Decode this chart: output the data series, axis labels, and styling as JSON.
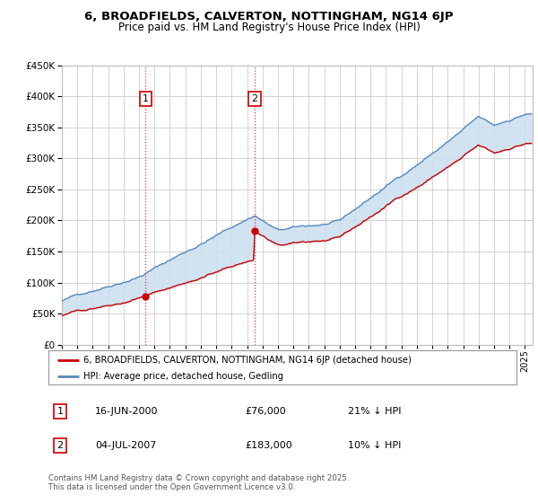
{
  "title": "6, BROADFIELDS, CALVERTON, NOTTINGHAM, NG14 6JP",
  "subtitle": "Price paid vs. HM Land Registry's House Price Index (HPI)",
  "legend_property": "6, BROADFIELDS, CALVERTON, NOTTINGHAM, NG14 6JP (detached house)",
  "legend_hpi": "HPI: Average price, detached house, Gedling",
  "annotation1_date": "16-JUN-2000",
  "annotation1_price": "£76,000",
  "annotation1_hpi": "21% ↓ HPI",
  "annotation2_date": "04-JUL-2007",
  "annotation2_price": "£183,000",
  "annotation2_hpi": "10% ↓ HPI",
  "footer": "Contains HM Land Registry data © Crown copyright and database right 2025.\nThis data is licensed under the Open Government Licence v3.0.",
  "property_color": "#cc0000",
  "hpi_color": "#5588bb",
  "hpi_fill_color": "#cce0f0",
  "background_color": "#ffffff",
  "plot_bg_color": "#ffffff",
  "grid_color": "#cccccc",
  "anno_line_color": "#ee3333",
  "ylim_min": 0,
  "ylim_max": 450000,
  "x_start_year": 1995,
  "x_end_year": 2025
}
